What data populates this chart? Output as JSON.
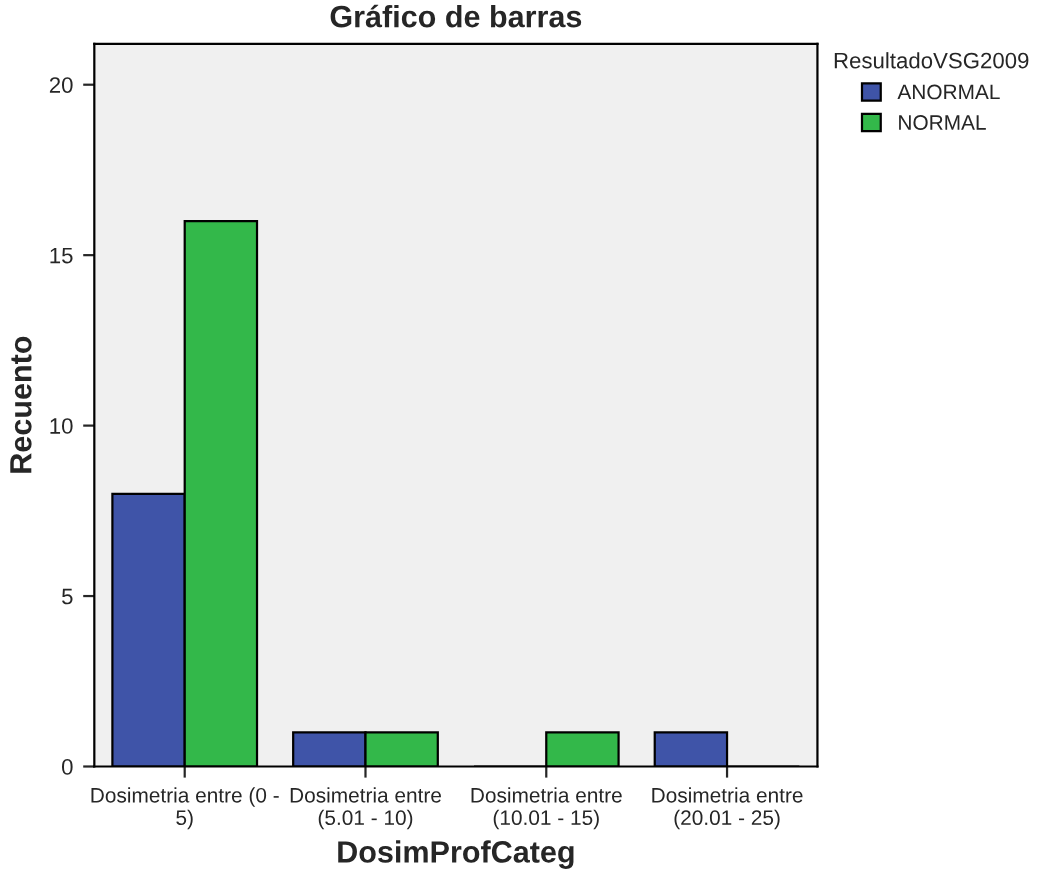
{
  "chart_data": {
    "type": "bar",
    "title": "Gráfico de barras",
    "xlabel": "DosimProfCateg",
    "ylabel": "Recuento",
    "legend_title": "ResultadoVSG2009",
    "categories": [
      "Dosimetria entre (0 -\n5)",
      "Dosimetria entre\n(5.01 - 10)",
      "Dosimetria entre\n(10.01 - 15)",
      "Dosimetria entre\n(20.01 - 25)"
    ],
    "series": [
      {
        "name": "ANORMAL",
        "color": "#3f54a8",
        "values": [
          8,
          1,
          0,
          1
        ]
      },
      {
        "name": "NORMAL",
        "color": "#33b84a",
        "values": [
          16,
          1,
          1,
          0
        ]
      }
    ],
    "ylim": [
      0,
      21.2
    ],
    "yticks": [
      0,
      5,
      10,
      15,
      20
    ],
    "grid": false,
    "legend": "top right"
  }
}
